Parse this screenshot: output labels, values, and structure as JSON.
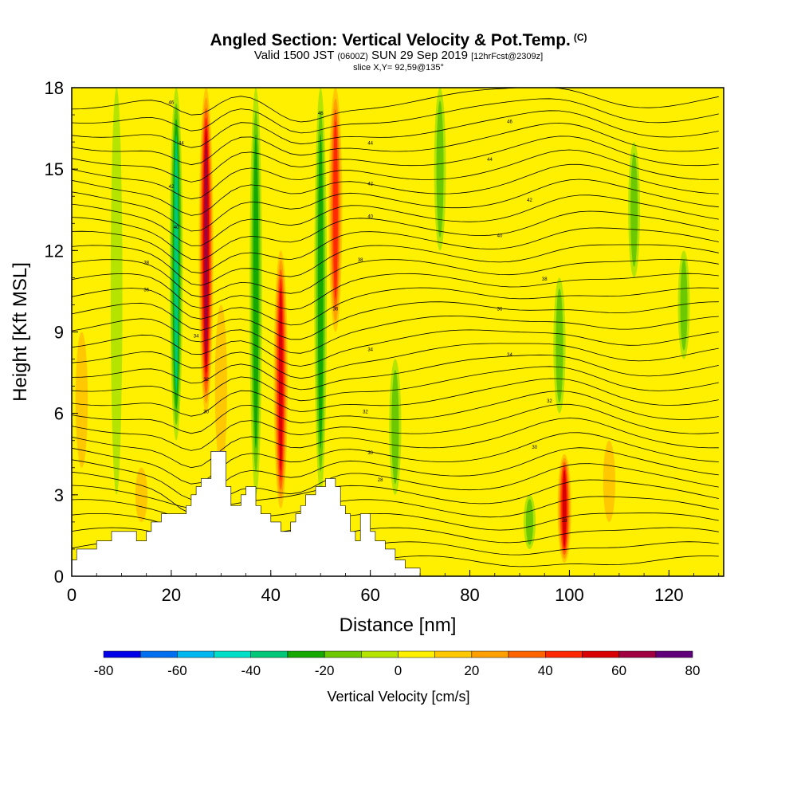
{
  "title": {
    "main": "Angled Section: Vertical Velocity & Pot.Temp.",
    "main_tag": "(C)",
    "valid_prefix": "Valid 1500 JST",
    "valid_utc": "(0600Z)",
    "valid_date": "SUN 29 Sep 2019",
    "forecast": "[12hrFcst@2309z]",
    "slice": "slice X,Y= 92,59@135°"
  },
  "chart_data": {
    "type": "heatmap",
    "xlabel": "Distance [nm]",
    "ylabel": "Height [Kft MSL]",
    "xlim": [
      0,
      131
    ],
    "ylim": [
      0,
      18
    ],
    "x_ticks": [
      0,
      20,
      40,
      60,
      80,
      100,
      120
    ],
    "y_ticks": [
      0,
      3,
      6,
      9,
      12,
      15,
      18
    ],
    "colorbar": {
      "label": "Vertical Velocity [cm/s]",
      "levels": [
        -80,
        -70,
        -60,
        -50,
        -40,
        -30,
        -20,
        -10,
        0,
        10,
        20,
        30,
        40,
        50,
        60,
        70,
        80
      ],
      "tick_labels": [
        "-80",
        "-60",
        "-40",
        "-20",
        "0",
        "20",
        "40",
        "60",
        "80"
      ],
      "tick_values": [
        -80,
        -60,
        -40,
        -20,
        0,
        20,
        40,
        60,
        80
      ],
      "colors": [
        "#0000e8",
        "#0070f0",
        "#00b8f0",
        "#00e0c8",
        "#00c878",
        "#14a800",
        "#6cc800",
        "#b4e400",
        "#fff000",
        "#ffc800",
        "#ffa000",
        "#ff6400",
        "#ff2800",
        "#d80000",
        "#a00040",
        "#60007a"
      ]
    },
    "terrain": [
      [
        0,
        0.6
      ],
      [
        1,
        0.6
      ],
      [
        1,
        1
      ],
      [
        5,
        1
      ],
      [
        5,
        1.3
      ],
      [
        8,
        1.3
      ],
      [
        8,
        1.65
      ],
      [
        13,
        1.65
      ],
      [
        13,
        1.3
      ],
      [
        15,
        1.3
      ],
      [
        15,
        1.65
      ],
      [
        16,
        1.65
      ],
      [
        16,
        2
      ],
      [
        18,
        2
      ],
      [
        18,
        2.3
      ],
      [
        23,
        2.3
      ],
      [
        23,
        2.6
      ],
      [
        24,
        2.6
      ],
      [
        24,
        3
      ],
      [
        25,
        3
      ],
      [
        25,
        3.3
      ],
      [
        26,
        3.3
      ],
      [
        26,
        3.6
      ],
      [
        28,
        3.6
      ],
      [
        28,
        4.6
      ],
      [
        31,
        4.6
      ],
      [
        31,
        3.3
      ],
      [
        32,
        3.3
      ],
      [
        32,
        2.6
      ],
      [
        34,
        2.6
      ],
      [
        34,
        3
      ],
      [
        35,
        3
      ],
      [
        35,
        3.3
      ],
      [
        37,
        3.3
      ],
      [
        37,
        2.6
      ],
      [
        38,
        2.6
      ],
      [
        38,
        2.3
      ],
      [
        40,
        2.3
      ],
      [
        40,
        2
      ],
      [
        42,
        2
      ],
      [
        42,
        1.65
      ],
      [
        44,
        1.65
      ],
      [
        44,
        2
      ],
      [
        45,
        2
      ],
      [
        45,
        2.3
      ],
      [
        46,
        2.3
      ],
      [
        46,
        2.6
      ],
      [
        47,
        2.6
      ],
      [
        47,
        3
      ],
      [
        49,
        3
      ],
      [
        49,
        3.3
      ],
      [
        51,
        3.3
      ],
      [
        51,
        3.6
      ],
      [
        53,
        3.6
      ],
      [
        53,
        3.3
      ],
      [
        54,
        3.3
      ],
      [
        54,
        2.6
      ],
      [
        55,
        2.6
      ],
      [
        55,
        2.3
      ],
      [
        56,
        2.3
      ],
      [
        56,
        1.65
      ],
      [
        57,
        1.65
      ],
      [
        57,
        1.3
      ],
      [
        58,
        1.3
      ],
      [
        58,
        2.3
      ],
      [
        60,
        2.3
      ],
      [
        60,
        1.65
      ],
      [
        61,
        1.65
      ],
      [
        61,
        1.3
      ],
      [
        63,
        1.3
      ],
      [
        63,
        1
      ],
      [
        65,
        1
      ],
      [
        65,
        0.6
      ],
      [
        67,
        0.6
      ],
      [
        67,
        0.3
      ],
      [
        70,
        0.3
      ],
      [
        70,
        0
      ],
      [
        131,
        0
      ]
    ],
    "updrafts": [
      {
        "x": 27,
        "z0": 6,
        "z1": 18,
        "w": 70
      },
      {
        "x": 42,
        "z0": 2.5,
        "z1": 12,
        "w": 60
      },
      {
        "x": 53,
        "z0": 9,
        "z1": 18,
        "w": 50
      },
      {
        "x": 99,
        "z0": 0.5,
        "z1": 4.5,
        "w": 55
      },
      {
        "x": 2,
        "z0": 4,
        "z1": 9,
        "w": 20
      },
      {
        "x": 14,
        "z0": 2,
        "z1": 4,
        "w": 20
      },
      {
        "x": 89,
        "z0": 2,
        "z1": 9,
        "w": 12
      },
      {
        "x": 120,
        "z0": 2,
        "z1": 8,
        "w": 12
      },
      {
        "x": 30,
        "z0": 4,
        "z1": 10,
        "w": 20
      },
      {
        "x": 108,
        "z0": 2,
        "z1": 5,
        "w": 18
      }
    ],
    "downdrafts": [
      {
        "x": 21,
        "z0": 5,
        "z1": 18,
        "w": -40
      },
      {
        "x": 37,
        "z0": 3,
        "z1": 18,
        "w": -30
      },
      {
        "x": 50,
        "z0": 3,
        "z1": 18,
        "w": -30
      },
      {
        "x": 65,
        "z0": 3,
        "z1": 8,
        "w": -20
      },
      {
        "x": 74,
        "z0": 12,
        "z1": 18,
        "w": -15
      },
      {
        "x": 98,
        "z0": 6,
        "z1": 11,
        "w": -20
      },
      {
        "x": 113,
        "z0": 11,
        "z1": 16,
        "w": -15
      },
      {
        "x": 123,
        "z0": 8,
        "z1": 12,
        "w": -15
      },
      {
        "x": 92,
        "z0": 1,
        "z1": 3,
        "w": -20
      },
      {
        "x": 9,
        "z0": 3,
        "z1": 18,
        "w": -12
      }
    ],
    "theta_labels": [
      {
        "x": 20,
        "z": 17.4,
        "text": "46"
      },
      {
        "x": 22,
        "z": 15.9,
        "text": "44"
      },
      {
        "x": 20,
        "z": 14.3,
        "text": "42"
      },
      {
        "x": 21,
        "z": 12.8,
        "text": "40"
      },
      {
        "x": 15,
        "z": 11.5,
        "text": "38"
      },
      {
        "x": 15,
        "z": 10.5,
        "text": "36"
      },
      {
        "x": 25,
        "z": 8.8,
        "text": "34"
      },
      {
        "x": 27,
        "z": 7.2,
        "text": "32"
      },
      {
        "x": 27,
        "z": 6.0,
        "text": "30"
      },
      {
        "x": 50,
        "z": 17.0,
        "text": "46"
      },
      {
        "x": 60,
        "z": 15.9,
        "text": "44"
      },
      {
        "x": 60,
        "z": 14.4,
        "text": "42"
      },
      {
        "x": 60,
        "z": 13.2,
        "text": "40"
      },
      {
        "x": 58,
        "z": 11.6,
        "text": "38"
      },
      {
        "x": 53,
        "z": 9.8,
        "text": "36"
      },
      {
        "x": 60,
        "z": 8.3,
        "text": "34"
      },
      {
        "x": 59,
        "z": 6.0,
        "text": "32"
      },
      {
        "x": 60,
        "z": 4.5,
        "text": "30"
      },
      {
        "x": 62,
        "z": 3.5,
        "text": "28"
      },
      {
        "x": 88,
        "z": 16.7,
        "text": "46"
      },
      {
        "x": 84,
        "z": 15.3,
        "text": "44"
      },
      {
        "x": 92,
        "z": 13.8,
        "text": "42"
      },
      {
        "x": 86,
        "z": 12.5,
        "text": "40"
      },
      {
        "x": 95,
        "z": 10.9,
        "text": "38"
      },
      {
        "x": 86,
        "z": 9.8,
        "text": "36"
      },
      {
        "x": 88,
        "z": 8.1,
        "text": "34"
      },
      {
        "x": 96,
        "z": 6.4,
        "text": "32"
      },
      {
        "x": 93,
        "z": 4.7,
        "text": "30"
      },
      {
        "x": 99,
        "z": 2.0,
        "text": "28"
      }
    ]
  }
}
